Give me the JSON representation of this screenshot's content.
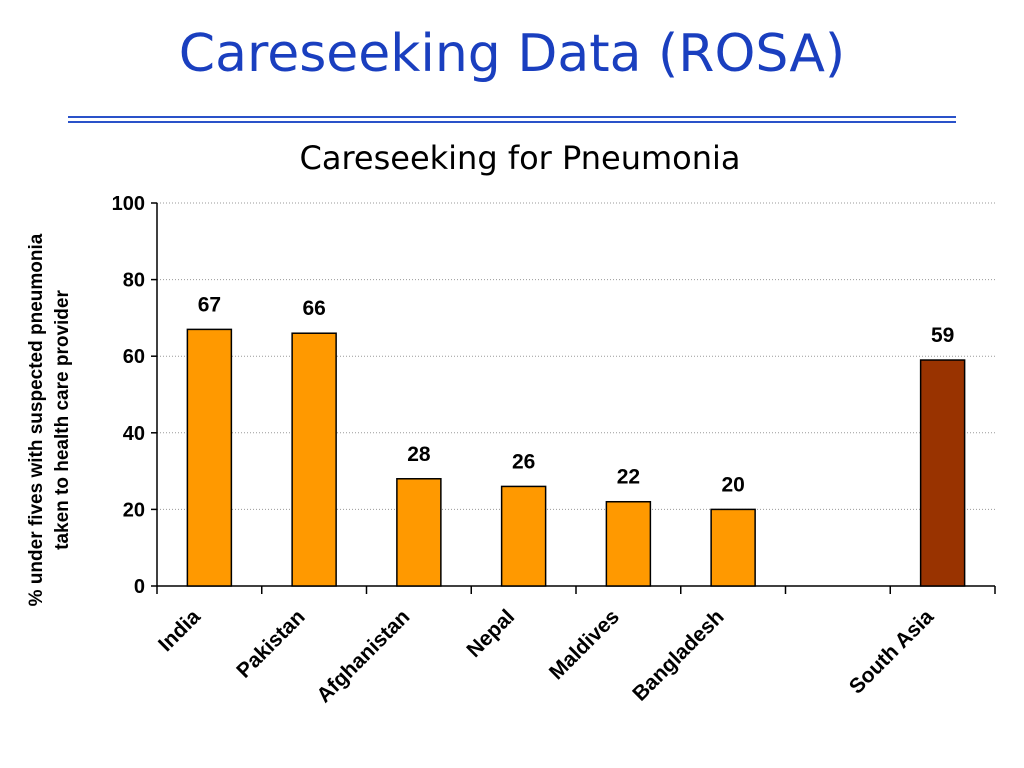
{
  "slide": {
    "title": "Careseeking Data (ROSA)",
    "accent_color": "#1a3fbf",
    "rule_color": "#2a52c9"
  },
  "chart_data": {
    "type": "bar",
    "title": "Careseeking for Pneumonia",
    "ylabel_lines": [
      "% under fives with suspected pneumonia",
      "taken to health care provider"
    ],
    "xlabel": "",
    "categories": [
      "India",
      "Pakistan",
      "Afghanistan",
      "Nepal",
      "Maldives",
      "Bangladesh",
      "",
      "South Asia"
    ],
    "values": [
      67,
      66,
      28,
      26,
      22,
      20,
      null,
      59
    ],
    "value_labels": [
      "67",
      "66",
      "28",
      "26",
      "22",
      "20",
      "",
      "59"
    ],
    "colors": [
      "#ff9900",
      "#ff9900",
      "#ff9900",
      "#ff9900",
      "#ff9900",
      "#ff9900",
      "#ff9900",
      "#993300"
    ],
    "ylim": [
      0,
      100
    ],
    "yticks": [
      0,
      20,
      40,
      60,
      80,
      100
    ],
    "ytick_labels": [
      "0",
      "20",
      "40",
      "60",
      "80",
      "100"
    ],
    "grid": true,
    "legend": "none"
  }
}
